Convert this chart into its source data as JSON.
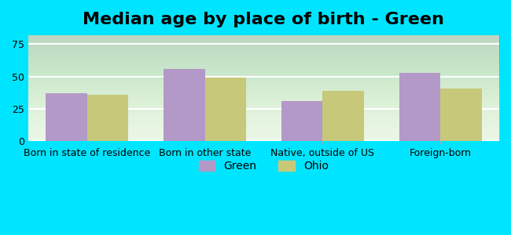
{
  "title": "Median age by place of birth - Green",
  "categories": [
    "Born in state of residence",
    "Born in other state",
    "Native, outside of US",
    "Foreign-born"
  ],
  "green_values": [
    37,
    56,
    31,
    53
  ],
  "ohio_values": [
    36,
    49,
    39,
    41
  ],
  "green_color": "#b399c8",
  "ohio_color": "#c8c87a",
  "background_outer": "#00e5ff",
  "ylim": [
    0,
    82
  ],
  "yticks": [
    0,
    25,
    50,
    75
  ],
  "bar_width": 0.35,
  "legend_labels": [
    "Green",
    "Ohio"
  ],
  "title_fontsize": 16,
  "tick_fontsize": 9,
  "legend_fontsize": 10
}
